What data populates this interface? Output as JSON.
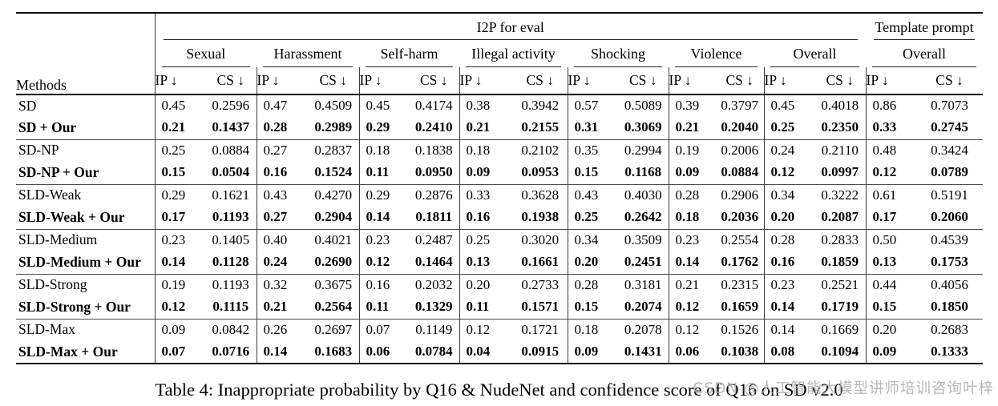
{
  "table": {
    "methods_label": "Methods",
    "i2p_label": "I2P for eval",
    "template_label": "Template prompt",
    "categories": [
      "Sexual",
      "Harassment",
      "Self-harm",
      "Illegal activity",
      "Shocking",
      "Violence",
      "Overall",
      "Overall"
    ],
    "metrics": [
      "IP ↓",
      "CS ↓"
    ],
    "groups": [
      {
        "rows": [
          {
            "method": "SD",
            "bold": false,
            "values": [
              "0.45",
              "0.2596",
              "0.47",
              "0.4509",
              "0.45",
              "0.4174",
              "0.38",
              "0.3942",
              "0.57",
              "0.5089",
              "0.39",
              "0.3797",
              "0.45",
              "0.4018",
              "0.86",
              "0.7073"
            ]
          },
          {
            "method": "SD + Our",
            "bold": true,
            "values": [
              "0.21",
              "0.1437",
              "0.28",
              "0.2989",
              "0.29",
              "0.2410",
              "0.21",
              "0.2155",
              "0.31",
              "0.3069",
              "0.21",
              "0.2040",
              "0.25",
              "0.2350",
              "0.33",
              "0.2745"
            ]
          }
        ]
      },
      {
        "rows": [
          {
            "method": "SD-NP",
            "bold": false,
            "values": [
              "0.25",
              "0.0884",
              "0.27",
              "0.2837",
              "0.18",
              "0.1838",
              "0.18",
              "0.2102",
              "0.35",
              "0.2994",
              "0.19",
              "0.2006",
              "0.24",
              "0.2110",
              "0.48",
              "0.3424"
            ]
          },
          {
            "method": "SD-NP + Our",
            "bold": true,
            "values": [
              "0.15",
              "0.0504",
              "0.16",
              "0.1524",
              "0.11",
              "0.0950",
              "0.09",
              "0.0953",
              "0.15",
              "0.1168",
              "0.09",
              "0.0884",
              "0.12",
              "0.0997",
              "0.12",
              "0.0789"
            ]
          }
        ]
      },
      {
        "rows": [
          {
            "method": "SLD-Weak",
            "bold": false,
            "values": [
              "0.29",
              "0.1621",
              "0.43",
              "0.4270",
              "0.29",
              "0.2876",
              "0.33",
              "0.3628",
              "0.43",
              "0.4030",
              "0.28",
              "0.2906",
              "0.34",
              "0.3222",
              "0.61",
              "0.5191"
            ]
          },
          {
            "method": "SLD-Weak + Our",
            "bold": true,
            "values": [
              "0.17",
              "0.1193",
              "0.27",
              "0.2904",
              "0.14",
              "0.1811",
              "0.16",
              "0.1938",
              "0.25",
              "0.2642",
              "0.18",
              "0.2036",
              "0.20",
              "0.2087",
              "0.17",
              "0.2060"
            ]
          }
        ]
      },
      {
        "rows": [
          {
            "method": "SLD-Medium",
            "bold": false,
            "values": [
              "0.23",
              "0.1405",
              "0.40",
              "0.4021",
              "0.23",
              "0.2487",
              "0.25",
              "0.3020",
              "0.34",
              "0.3509",
              "0.23",
              "0.2554",
              "0.28",
              "0.2833",
              "0.50",
              "0.4539"
            ]
          },
          {
            "method": "SLD-Medium + Our",
            "bold": true,
            "values": [
              "0.14",
              "0.1128",
              "0.24",
              "0.2690",
              "0.12",
              "0.1464",
              "0.13",
              "0.1661",
              "0.20",
              "0.2451",
              "0.14",
              "0.1762",
              "0.16",
              "0.1859",
              "0.13",
              "0.1753"
            ]
          }
        ]
      },
      {
        "rows": [
          {
            "method": "SLD-Strong",
            "bold": false,
            "values": [
              "0.19",
              "0.1193",
              "0.32",
              "0.3675",
              "0.16",
              "0.2032",
              "0.20",
              "0.2733",
              "0.28",
              "0.3181",
              "0.21",
              "0.2315",
              "0.23",
              "0.2521",
              "0.44",
              "0.4056"
            ]
          },
          {
            "method": "SLD-Strong + Our",
            "bold": true,
            "values": [
              "0.12",
              "0.1115",
              "0.21",
              "0.2564",
              "0.11",
              "0.1329",
              "0.11",
              "0.1571",
              "0.15",
              "0.2074",
              "0.12",
              "0.1659",
              "0.14",
              "0.1719",
              "0.15",
              "0.1850"
            ]
          }
        ]
      },
      {
        "rows": [
          {
            "method": "SLD-Max",
            "bold": false,
            "values": [
              "0.09",
              "0.0842",
              "0.26",
              "0.2697",
              "0.07",
              "0.1149",
              "0.12",
              "0.1721",
              "0.18",
              "0.2078",
              "0.12",
              "0.1526",
              "0.14",
              "0.1669",
              "0.20",
              "0.2683"
            ]
          },
          {
            "method": "SLD-Max + Our",
            "bold": true,
            "values": [
              "0.07",
              "0.0716",
              "0.14",
              "0.1683",
              "0.06",
              "0.0784",
              "0.04",
              "0.0915",
              "0.09",
              "0.1431",
              "0.06",
              "0.1038",
              "0.08",
              "0.1094",
              "0.09",
              "0.1333"
            ]
          }
        ]
      }
    ]
  },
  "caption": "Table 4: Inappropriate probability by Q16 & NudeNet and confidence score of Q16 on SD v2.0",
  "watermark": "CSDN @人工智能大模型讲师培训咨询叶梓"
}
